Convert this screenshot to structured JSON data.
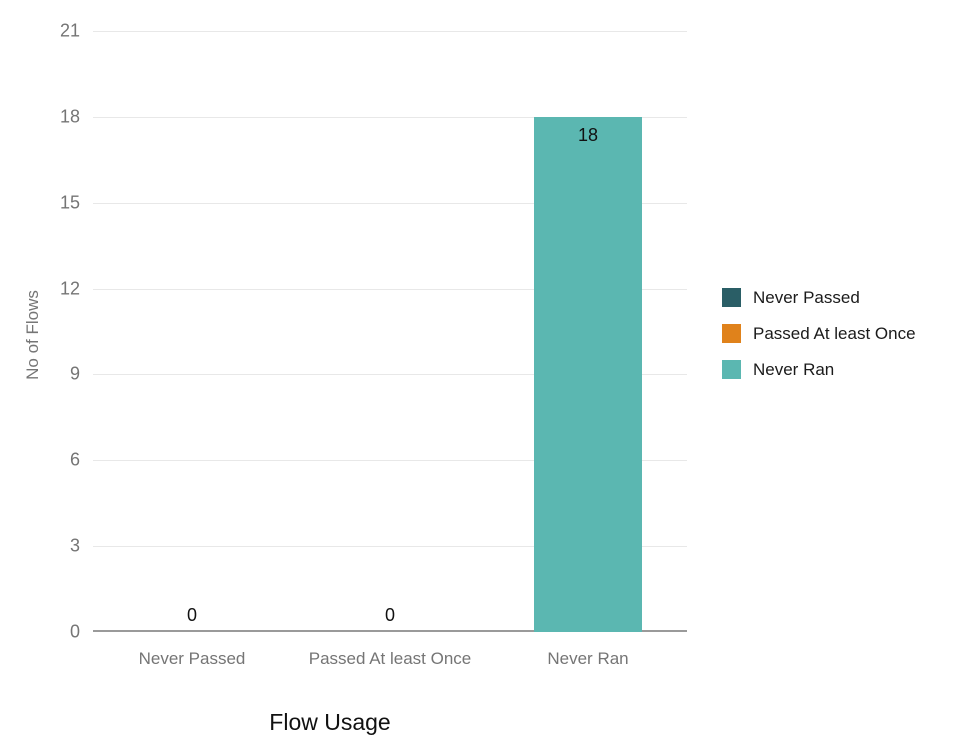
{
  "chart_data": {
    "type": "bar",
    "title": "",
    "xlabel": "Flow Usage",
    "ylabel": "No of Flows",
    "categories": [
      "Never Passed",
      "Passed At least Once",
      "Never Ran"
    ],
    "values": [
      0,
      0,
      18
    ],
    "value_labels": [
      "0",
      "0",
      "18"
    ],
    "ylim": [
      0,
      21
    ],
    "yticks": [
      0,
      3,
      6,
      9,
      12,
      15,
      18,
      21
    ],
    "grid": "horizontal",
    "legend_position": "right",
    "legend": [
      {
        "label": "Never Passed",
        "color": "#2a5e66"
      },
      {
        "label": "Passed At least Once",
        "color": "#e0821b"
      },
      {
        "label": "Never Ran",
        "color": "#5bb7b1"
      }
    ]
  }
}
